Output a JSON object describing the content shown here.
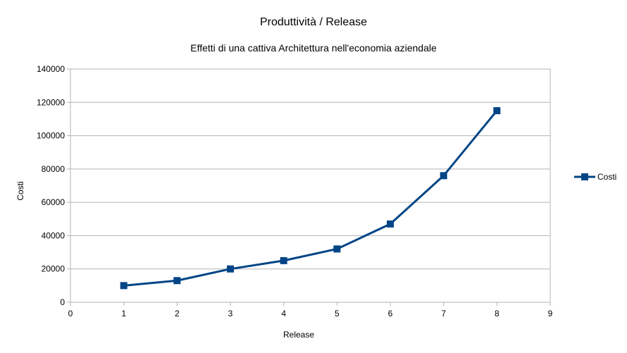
{
  "chart_data": {
    "type": "scatter",
    "title": "Produttività / Release",
    "subtitle": "Effetti di una cattiva Architettura nell'economia aziendale",
    "xlabel": "Release",
    "ylabel": "Costi",
    "xlim": [
      0,
      9
    ],
    "ylim": [
      0,
      140000
    ],
    "xticks": [
      0,
      1,
      2,
      3,
      4,
      5,
      6,
      7,
      8,
      9
    ],
    "yticks": [
      0,
      20000,
      40000,
      60000,
      80000,
      100000,
      120000,
      140000
    ],
    "grid": "horizontal",
    "legend_position": "right",
    "series": [
      {
        "name": "Costi",
        "color": "#004586",
        "marker": "square",
        "x": [
          1,
          2,
          3,
          4,
          5,
          6,
          7,
          8
        ],
        "y": [
          10000,
          13000,
          20000,
          25000,
          32000,
          47000,
          76000,
          115000
        ]
      }
    ]
  }
}
